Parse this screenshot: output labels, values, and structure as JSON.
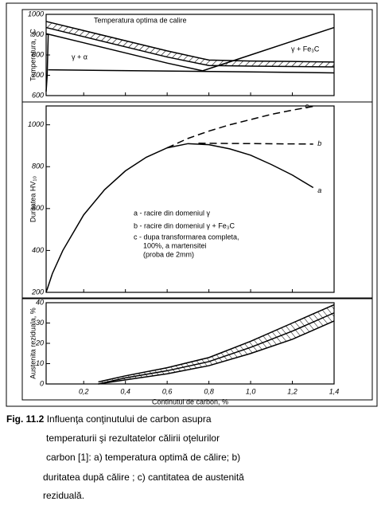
{
  "chart_data": [
    {
      "type": "line",
      "ylabel": "Temperatura, °C",
      "xlim": [
        0.02,
        1.4
      ],
      "ylim": [
        600,
        1000
      ],
      "yticks": [
        600,
        700,
        800,
        900,
        1000
      ],
      "annotations": [
        "Temperatura optima de calire",
        "γ + α",
        "γ + Fe₃C"
      ],
      "series": [
        {
          "color": "#000000",
          "x": [
            0.02,
            0.2,
            0.4,
            0.6,
            0.8,
            1.0,
            1.2,
            1.4
          ],
          "values": [
            965,
            920,
            870,
            820,
            775,
            770,
            768,
            765
          ]
        },
        {
          "color": "#000000",
          "x": [
            0.02,
            0.2,
            0.4,
            0.6,
            0.8,
            1.0,
            1.2,
            1.4
          ],
          "values": [
            935,
            890,
            840,
            790,
            748,
            745,
            743,
            741
          ]
        },
        {
          "color": "#000000",
          "x": [
            0.02,
            0.2,
            0.4,
            0.6,
            0.77
          ],
          "values": [
            905,
            860,
            810,
            760,
            722
          ]
        },
        {
          "color": "#000000",
          "x": [
            0.77,
            1.0,
            1.2,
            1.4
          ],
          "values": [
            722,
            800,
            868,
            935
          ]
        },
        {
          "color": "#000000",
          "x": [
            0.03,
            1.4
          ],
          "values": [
            727,
            712
          ]
        },
        {
          "color": "#000000",
          "x": [
            0.02,
            0.025,
            0.03
          ],
          "values": [
            620,
            700,
            900
          ]
        }
      ]
    },
    {
      "type": "line",
      "ylabel": "Duritatea HV₁₀",
      "xlim": [
        0.02,
        1.4
      ],
      "ylim": [
        200,
        1090
      ],
      "yticks": [
        200,
        400,
        600,
        800,
        1000
      ],
      "annotations": [
        "a - racire din domeniul γ",
        "b - racire din domeniul γ + Fe₃C",
        "c - dupa transformarea completa,",
        "100%, a martensitei",
        "(proba de 2mm)"
      ],
      "series": [
        {
          "name": "a",
          "color": "#000000",
          "dash": false,
          "x": [
            0.02,
            0.05,
            0.1,
            0.2,
            0.3,
            0.4,
            0.5,
            0.6,
            0.7,
            0.8,
            0.9,
            1.0,
            1.1,
            1.2,
            1.3
          ],
          "values": [
            200,
            290,
            400,
            570,
            690,
            780,
            845,
            890,
            910,
            905,
            885,
            855,
            810,
            760,
            700
          ]
        },
        {
          "name": "b",
          "color": "#000000",
          "dash": true,
          "x": [
            0.75,
            1.3
          ],
          "values": [
            912,
            908
          ]
        },
        {
          "name": "c",
          "color": "#000000",
          "dash": true,
          "x": [
            0.6,
            0.7,
            0.8,
            0.9,
            1.0,
            1.1,
            1.2,
            1.3
          ],
          "values": [
            890,
            935,
            970,
            1000,
            1025,
            1050,
            1070,
            1088
          ]
        }
      ]
    },
    {
      "type": "line",
      "xlabel": "Continutul de carbon, %",
      "ylabel": "Austenita reziduala, %",
      "xlim": [
        0.02,
        1.4
      ],
      "ylim": [
        0,
        40
      ],
      "yticks": [
        0,
        10,
        20,
        30,
        40
      ],
      "xticks": [
        {
          "value": 0.2,
          "label": "0,2"
        },
        {
          "value": 0.4,
          "label": "0,4"
        },
        {
          "value": 0.6,
          "label": "0,6"
        },
        {
          "value": 0.8,
          "label": "0,8"
        },
        {
          "value": 1.0,
          "label": "1,0"
        },
        {
          "value": 1.2,
          "label": "1,2"
        },
        {
          "value": 1.4,
          "label": "1,4"
        }
      ],
      "series": [
        {
          "color": "#000000",
          "x": [
            0.27,
            0.4,
            0.6,
            0.8,
            1.0,
            1.2,
            1.4
          ],
          "values": [
            0,
            2,
            5,
            9,
            15,
            22,
            31
          ]
        },
        {
          "color": "#000000",
          "x": [
            0.27,
            0.4,
            0.6,
            0.8,
            1.0,
            1.2,
            1.4
          ],
          "values": [
            0,
            3,
            6.5,
            11,
            18,
            26,
            35
          ]
        },
        {
          "color": "#000000",
          "x": [
            0.27,
            0.4,
            0.6,
            0.8,
            1.0,
            1.2,
            1.4
          ],
          "values": [
            1,
            4,
            8,
            13,
            21,
            30,
            39
          ]
        }
      ]
    }
  ],
  "caption": {
    "figure": "Fig. 11.2",
    "lines": [
      " Influenţa  conţinutului  de  carbon asupra",
      "temperaturii şi rezultatelor  călirii  oţelurilor",
      "carbon [1]: a) temperatura optimă de călire; b)",
      "duritatea după călire ; c) cantitatea de austenită",
      "reziduală."
    ]
  }
}
